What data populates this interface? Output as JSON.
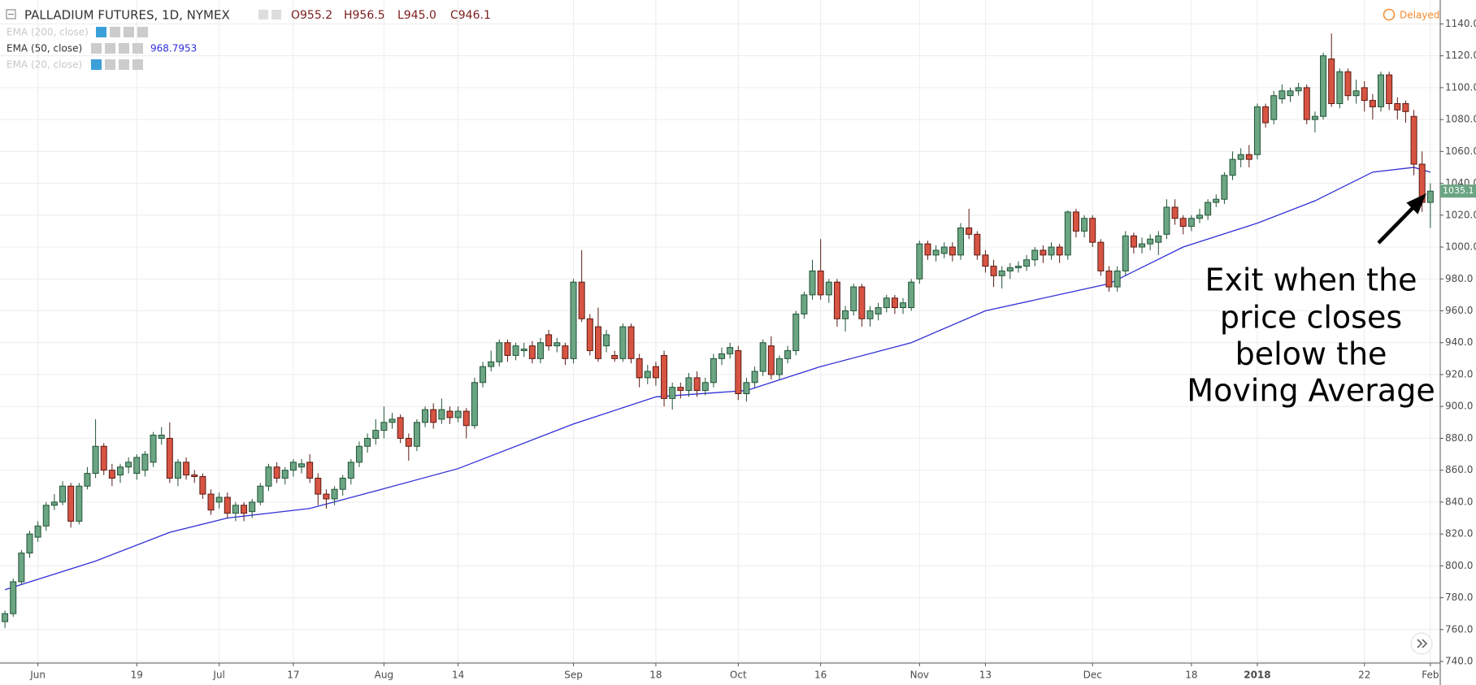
{
  "chart_data": {
    "type": "candlestick",
    "title": "PALLADIUM FUTURES, 1D, NYMEX",
    "ohlc_labels": [
      "O955.2",
      "H956.5",
      "L945.0",
      "C946.1"
    ],
    "indicators": [
      {
        "name": "EMA (200, close)"
      },
      {
        "name": "EMA (50, close)",
        "value_label": "968.7953"
      },
      {
        "name": "EMA (20, close)"
      }
    ],
    "status": "Delayed",
    "annotation": [
      "Exit when the",
      "price closes",
      "below the",
      "Moving Average"
    ],
    "last_price": 1035.1,
    "up_color": "#6ba583",
    "down_color": "#d75442",
    "up_border": "#225437",
    "down_border": "#5b1a13",
    "grid": true,
    "xlim": [
      -0.6,
      174.2
    ],
    "ylim": [
      739,
      1155
    ],
    "yticks": [
      {
        "value": 740,
        "label": "740.0"
      },
      {
        "value": 760,
        "label": "760.0"
      },
      {
        "value": 780,
        "label": "780.0"
      },
      {
        "value": 800,
        "label": "800.0"
      },
      {
        "value": 820,
        "label": "820.0"
      },
      {
        "value": 840,
        "label": "840.0"
      },
      {
        "value": 860,
        "label": "860.0"
      },
      {
        "value": 880,
        "label": "880.0"
      },
      {
        "value": 900,
        "label": "900.0"
      },
      {
        "value": 920,
        "label": "920.0"
      },
      {
        "value": 940,
        "label": "940.0"
      },
      {
        "value": 960,
        "label": "960.0"
      },
      {
        "value": 980,
        "label": "980.0"
      },
      {
        "value": 1000,
        "label": "1000.0"
      },
      {
        "value": 1020,
        "label": "1020.0"
      },
      {
        "value": 1040,
        "label": "1040.0"
      },
      {
        "value": 1060,
        "label": "1060.0"
      },
      {
        "value": 1080,
        "label": "1080.0"
      },
      {
        "value": 1100,
        "label": "1100.0"
      },
      {
        "value": 1120,
        "label": "1120.0"
      },
      {
        "value": 1140,
        "label": "1140.0"
      }
    ],
    "xticks": [
      {
        "value": 4,
        "label": "Jun"
      },
      {
        "value": 16,
        "label": "19"
      },
      {
        "value": 26,
        "label": "Jul"
      },
      {
        "value": 35,
        "label": "17"
      },
      {
        "value": 46,
        "label": "Aug"
      },
      {
        "value": 55,
        "label": "14"
      },
      {
        "value": 69,
        "label": "Sep"
      },
      {
        "value": 79,
        "label": "18"
      },
      {
        "value": 89,
        "label": "Oct"
      },
      {
        "value": 99,
        "label": "16"
      },
      {
        "value": 111,
        "label": "Nov"
      },
      {
        "value": 119,
        "label": "13"
      },
      {
        "value": 132,
        "label": "Dec"
      },
      {
        "value": 144,
        "label": "18"
      },
      {
        "value": 152,
        "label": "2018"
      },
      {
        "value": 165,
        "label": "22"
      },
      {
        "value": 173,
        "label": "Feb"
      }
    ],
    "candles": [
      [
        765,
        772,
        761,
        770
      ],
      [
        770,
        792,
        768,
        790
      ],
      [
        790,
        810,
        788,
        808
      ],
      [
        808,
        822,
        805,
        820
      ],
      [
        818,
        828,
        815,
        825
      ],
      [
        825,
        840,
        822,
        838
      ],
      [
        838,
        845,
        835,
        840
      ],
      [
        840,
        853,
        838,
        850
      ],
      [
        850,
        852,
        824,
        828
      ],
      [
        828,
        852,
        826,
        850
      ],
      [
        850,
        862,
        848,
        858
      ],
      [
        858,
        892,
        855,
        875
      ],
      [
        875,
        877,
        857,
        860
      ],
      [
        860,
        864,
        850,
        855
      ],
      [
        857,
        864,
        852,
        862
      ],
      [
        862,
        868,
        858,
        865
      ],
      [
        858,
        870,
        854,
        868
      ],
      [
        860,
        872,
        856,
        870
      ],
      [
        865,
        884,
        862,
        882
      ],
      [
        880,
        887,
        876,
        882
      ],
      [
        880,
        890,
        852,
        855
      ],
      [
        855,
        867,
        850,
        865
      ],
      [
        865,
        868,
        854,
        857
      ],
      [
        857,
        860,
        852,
        856
      ],
      [
        856,
        858,
        842,
        845
      ],
      [
        845,
        848,
        832,
        835
      ],
      [
        840,
        846,
        836,
        843
      ],
      [
        843,
        846,
        830,
        833
      ],
      [
        833,
        840,
        828,
        838
      ],
      [
        838,
        840,
        828,
        833
      ],
      [
        834,
        842,
        830,
        840
      ],
      [
        840,
        852,
        838,
        850
      ],
      [
        850,
        864,
        847,
        862
      ],
      [
        862,
        865,
        852,
        855
      ],
      [
        855,
        862,
        851,
        860
      ],
      [
        860,
        867,
        856,
        865
      ],
      [
        862,
        867,
        858,
        864
      ],
      [
        865,
        870,
        852,
        855
      ],
      [
        855,
        858,
        838,
        845
      ],
      [
        845,
        848,
        836,
        842
      ],
      [
        842,
        850,
        838,
        848
      ],
      [
        848,
        857,
        844,
        855
      ],
      [
        855,
        867,
        851,
        865
      ],
      [
        865,
        878,
        862,
        875
      ],
      [
        875,
        883,
        871,
        880
      ],
      [
        880,
        892,
        876,
        885
      ],
      [
        885,
        900,
        880,
        890
      ],
      [
        890,
        896,
        886,
        892
      ],
      [
        893,
        895,
        877,
        880
      ],
      [
        880,
        883,
        866,
        875
      ],
      [
        875,
        892,
        872,
        890
      ],
      [
        890,
        900,
        887,
        898
      ],
      [
        898,
        902,
        886,
        890
      ],
      [
        892,
        905,
        889,
        898
      ],
      [
        897,
        900,
        889,
        893
      ],
      [
        893,
        900,
        890,
        897
      ],
      [
        897,
        899,
        880,
        888
      ],
      [
        888,
        918,
        886,
        915
      ],
      [
        915,
        928,
        912,
        925
      ],
      [
        925,
        935,
        922,
        928
      ],
      [
        928,
        942,
        925,
        940
      ],
      [
        940,
        942,
        928,
        932
      ],
      [
        932,
        940,
        929,
        938
      ],
      [
        935,
        940,
        931,
        936
      ],
      [
        938,
        941,
        927,
        930
      ],
      [
        930,
        943,
        927,
        940
      ],
      [
        945,
        948,
        935,
        938
      ],
      [
        938,
        943,
        934,
        940
      ],
      [
        938,
        940,
        926,
        930
      ],
      [
        930,
        980,
        927,
        978
      ],
      [
        978,
        998,
        953,
        955
      ],
      [
        955,
        958,
        932,
        935
      ],
      [
        950,
        962,
        928,
        930
      ],
      [
        938,
        948,
        934,
        945
      ],
      [
        932,
        935,
        928,
        930
      ],
      [
        930,
        952,
        928,
        950
      ],
      [
        950,
        952,
        927,
        930
      ],
      [
        930,
        933,
        912,
        918
      ],
      [
        918,
        926,
        914,
        922
      ],
      [
        925,
        928,
        913,
        918
      ],
      [
        932,
        935,
        900,
        905
      ],
      [
        905,
        915,
        898,
        912
      ],
      [
        912,
        915,
        905,
        910
      ],
      [
        910,
        921,
        906,
        918
      ],
      [
        918,
        922,
        906,
        910
      ],
      [
        910,
        918,
        907,
        915
      ],
      [
        915,
        933,
        912,
        930
      ],
      [
        930,
        937,
        926,
        933
      ],
      [
        933,
        940,
        930,
        937
      ],
      [
        935,
        938,
        904,
        908
      ],
      [
        908,
        918,
        903,
        915
      ],
      [
        915,
        925,
        912,
        922
      ],
      [
        922,
        942,
        919,
        940
      ],
      [
        938,
        944,
        917,
        920
      ],
      [
        920,
        932,
        917,
        930
      ],
      [
        930,
        938,
        927,
        935
      ],
      [
        935,
        960,
        932,
        958
      ],
      [
        958,
        972,
        955,
        970
      ],
      [
        970,
        992,
        967,
        985
      ],
      [
        985,
        1005,
        967,
        970
      ],
      [
        970,
        980,
        965,
        978
      ],
      [
        978,
        980,
        950,
        955
      ],
      [
        955,
        963,
        947,
        960
      ],
      [
        960,
        977,
        957,
        975
      ],
      [
        975,
        977,
        950,
        955
      ],
      [
        955,
        963,
        950,
        960
      ],
      [
        958,
        965,
        954,
        962
      ],
      [
        962,
        970,
        959,
        968
      ],
      [
        968,
        970,
        958,
        962
      ],
      [
        962,
        968,
        958,
        965
      ],
      [
        962,
        980,
        960,
        978
      ],
      [
        980,
        1004,
        977,
        1002
      ],
      [
        1002,
        1004,
        992,
        995
      ],
      [
        995,
        1001,
        991,
        998
      ],
      [
        996,
        1003,
        993,
        1000
      ],
      [
        1000,
        1003,
        991,
        995
      ],
      [
        995,
        1015,
        992,
        1012
      ],
      [
        1012,
        1024,
        1005,
        1008
      ],
      [
        1008,
        1010,
        992,
        995
      ],
      [
        995,
        998,
        984,
        988
      ],
      [
        988,
        992,
        975,
        982
      ],
      [
        982,
        988,
        974,
        985
      ],
      [
        985,
        990,
        980,
        987
      ],
      [
        987,
        991,
        984,
        988
      ],
      [
        988,
        995,
        985,
        992
      ],
      [
        992,
        1000,
        988,
        998
      ],
      [
        998,
        1001,
        990,
        995
      ],
      [
        995,
        1003,
        992,
        1000
      ],
      [
        1000,
        1002,
        990,
        995
      ],
      [
        995,
        1023,
        992,
        1022
      ],
      [
        1022,
        1024,
        1006,
        1010
      ],
      [
        1010,
        1020,
        1006,
        1018
      ],
      [
        1018,
        1020,
        1000,
        1003
      ],
      [
        1003,
        1005,
        982,
        985
      ],
      [
        985,
        988,
        972,
        975
      ],
      [
        975,
        988,
        972,
        985
      ],
      [
        985,
        1010,
        982,
        1007
      ],
      [
        1007,
        1009,
        996,
        1000
      ],
      [
        1000,
        1006,
        996,
        1002
      ],
      [
        1002,
        1008,
        998,
        1005
      ],
      [
        1003,
        1010,
        995,
        1007
      ],
      [
        1008,
        1030,
        1005,
        1025
      ],
      [
        1025,
        1030,
        1014,
        1018
      ],
      [
        1018,
        1020,
        1008,
        1013
      ],
      [
        1013,
        1020,
        1010,
        1018
      ],
      [
        1018,
        1024,
        1015,
        1020
      ],
      [
        1020,
        1030,
        1017,
        1028
      ],
      [
        1028,
        1033,
        1025,
        1030
      ],
      [
        1030,
        1047,
        1027,
        1045
      ],
      [
        1045,
        1060,
        1042,
        1055
      ],
      [
        1055,
        1062,
        1050,
        1058
      ],
      [
        1058,
        1064,
        1050,
        1055
      ],
      [
        1058,
        1090,
        1055,
        1088
      ],
      [
        1088,
        1090,
        1075,
        1078
      ],
      [
        1080,
        1098,
        1077,
        1095
      ],
      [
        1093,
        1102,
        1090,
        1098
      ],
      [
        1095,
        1100,
        1091,
        1098
      ],
      [
        1098,
        1103,
        1095,
        1100
      ],
      [
        1100,
        1102,
        1077,
        1080
      ],
      [
        1080,
        1085,
        1072,
        1082
      ],
      [
        1082,
        1122,
        1080,
        1120
      ],
      [
        1118,
        1134,
        1088,
        1090
      ],
      [
        1090,
        1112,
        1087,
        1110
      ],
      [
        1110,
        1112,
        1092,
        1095
      ],
      [
        1095,
        1105,
        1090,
        1098
      ],
      [
        1100,
        1104,
        1085,
        1092
      ],
      [
        1092,
        1096,
        1080,
        1088
      ],
      [
        1088,
        1110,
        1085,
        1108
      ],
      [
        1108,
        1110,
        1086,
        1090
      ],
      [
        1090,
        1094,
        1080,
        1086
      ],
      [
        1090,
        1092,
        1078,
        1085
      ],
      [
        1082,
        1086,
        1045,
        1052
      ],
      [
        1052,
        1060,
        1022,
        1028
      ],
      [
        1028,
        1040,
        1012,
        1035.1
      ]
    ],
    "ema": {
      "color": "#2f2fd8",
      "x": [
        0,
        11,
        20,
        27,
        37,
        45,
        55,
        69,
        79,
        90,
        99,
        110,
        119,
        134,
        143,
        152,
        159,
        166,
        171,
        173
      ],
      "values": [
        785,
        803,
        821,
        830,
        836,
        847,
        861,
        889,
        906,
        910,
        925,
        940,
        960,
        977,
        1000,
        1015,
        1029,
        1047,
        1050,
        1047
      ]
    }
  }
}
